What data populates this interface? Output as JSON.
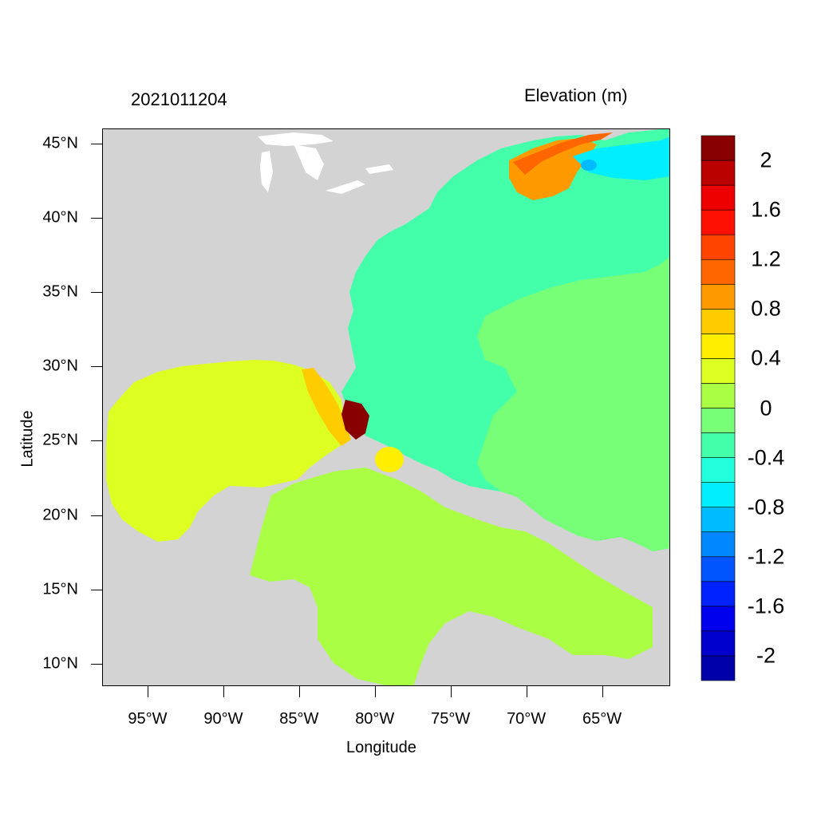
{
  "header": {
    "timestamp": "2021011204",
    "variable_title": "Elevation (m)"
  },
  "axes": {
    "xlabel": "Longitude",
    "ylabel": "Latitude",
    "xlim": [
      -98,
      -60.5
    ],
    "ylim": [
      8.5,
      46
    ],
    "xticks": [
      "95°W",
      "90°W",
      "85°W",
      "80°W",
      "75°W",
      "70°W",
      "65°W"
    ],
    "yticks": [
      "45°N",
      "40°N",
      "35°N",
      "30°N",
      "25°N",
      "20°N",
      "15°N",
      "10°N"
    ]
  },
  "colorbar": {
    "labels": [
      "2",
      "1.6",
      "1.2",
      "0.8",
      "0.4",
      "0",
      "-0.4",
      "-0.8",
      "-1.2",
      "-1.6",
      "-2"
    ],
    "levels": [
      -2.2,
      -2.0,
      -1.8,
      -1.6,
      -1.4,
      -1.2,
      -1.0,
      -0.8,
      -0.6,
      -0.4,
      -0.2,
      0.0,
      0.2,
      0.4,
      0.6,
      0.8,
      1.0,
      1.2,
      1.4,
      1.6,
      1.8,
      2.0,
      2.2
    ],
    "colors_bottom_to_top": [
      "#0000aa",
      "#0000cc",
      "#0000ee",
      "#0022ff",
      "#0055ff",
      "#0088ff",
      "#00bbff",
      "#00eeff",
      "#22ffdd",
      "#44ffaa",
      "#77ff77",
      "#aaff44",
      "#ddff22",
      "#ffee00",
      "#ffcc00",
      "#ff9900",
      "#ff6600",
      "#ff4400",
      "#ff1100",
      "#ee0000",
      "#bb0000",
      "#880000"
    ]
  },
  "map_colors": {
    "land": "#d3d3d3",
    "lakes": "#ffffff",
    "atlantic": "#44ffaa",
    "atlantic_offshore": "#77ff77",
    "gulf": "#ddff22",
    "caribbean": "#aaff44",
    "gulf_of_maine": "#ff9900",
    "new_england_coast": "#ff6600",
    "south_florida": "#880000",
    "florida_gulf_coast": "#ffcc00",
    "bahamas_bank": "#ffee00",
    "nova_scotia_low": "#00bbff",
    "nova_scotia_shelf": "#00eeff"
  }
}
